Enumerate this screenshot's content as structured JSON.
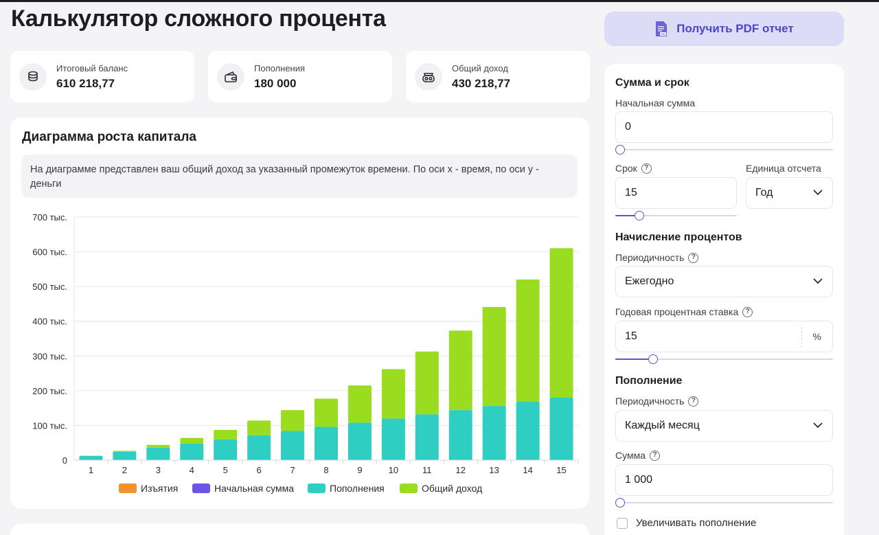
{
  "header": {
    "title": "Калькулятор сложного процента",
    "pdf_button_label": "Получить PDF отчет"
  },
  "stats": [
    {
      "label": "Итоговый баланс",
      "value": "610 218,77",
      "icon": "coins-stack-icon"
    },
    {
      "label": "Пополнения",
      "value": "180 000",
      "icon": "wallet-icon"
    },
    {
      "label": "Общий доход",
      "value": "430 218,77",
      "icon": "money-bag-icon"
    }
  ],
  "chart": {
    "title": "Диаграмма роста капитала",
    "description": "На диаграмме представлен ваш общий доход за указанный промежуток времени. По оси x - время, по оси y - деньги"
  },
  "chart_data": {
    "type": "bar",
    "stacked": true,
    "categories": [
      "1",
      "2",
      "3",
      "4",
      "5",
      "6",
      "7",
      "8",
      "9",
      "10",
      "11",
      "12",
      "13",
      "14",
      "15"
    ],
    "y_tick_labels": [
      "0",
      "100 тыс.",
      "200 тыс.",
      "300 тыс.",
      "400 тыс.",
      "500 тыс.",
      "600 тыс.",
      "700 тыс."
    ],
    "ylim": [
      0,
      700000
    ],
    "grid": true,
    "legend_position": "bottom",
    "series": [
      {
        "name": "Изъятия",
        "color": "#f4922f",
        "values": [
          0,
          0,
          0,
          0,
          0,
          0,
          0,
          0,
          0,
          0,
          0,
          0,
          0,
          0,
          0
        ]
      },
      {
        "name": "Начальная сумма",
        "color": "#6a55e8",
        "values": [
          0,
          0,
          0,
          0,
          0,
          0,
          0,
          0,
          0,
          0,
          0,
          0,
          0,
          0,
          0
        ]
      },
      {
        "name": "Пополнения",
        "color": "#2ecfc2",
        "values": [
          12000,
          24000,
          36000,
          48000,
          60000,
          72000,
          84000,
          96000,
          108000,
          120000,
          132000,
          144000,
          156000,
          168000,
          180000
        ]
      },
      {
        "name": "Общий доход",
        "color": "#9adc1f",
        "values": [
          930,
          3000,
          8000,
          16000,
          27000,
          42000,
          60000,
          81000,
          107000,
          142000,
          181000,
          229000,
          285000,
          352000,
          430219
        ]
      }
    ]
  },
  "form": {
    "section_amount_term": "Сумма и срок",
    "initial_amount_label": "Начальная сумма",
    "initial_amount_value": "0",
    "initial_amount_slider": 0,
    "term_label": "Срок",
    "term_value": "15",
    "term_slider": 0.17,
    "unit_label": "Единица отсчета",
    "unit_value": "Год",
    "section_interest": "Начисление процентов",
    "interest_period_label": "Периодичность",
    "interest_period_value": "Ежегодно",
    "rate_label": "Годовая процентная ставка",
    "rate_value": "15",
    "rate_suffix": "%",
    "rate_slider": 0.16,
    "section_contribution": "Пополнение",
    "contribution_period_label": "Периодичность",
    "contribution_period_value": "Каждый месяц",
    "contribution_amount_label": "Сумма",
    "contribution_amount_value": "1 000",
    "contribution_slider": 0,
    "increase_contribution_label": "Увеличивать пополнение",
    "increase_contribution_checked": false,
    "help_glyph": "?"
  }
}
